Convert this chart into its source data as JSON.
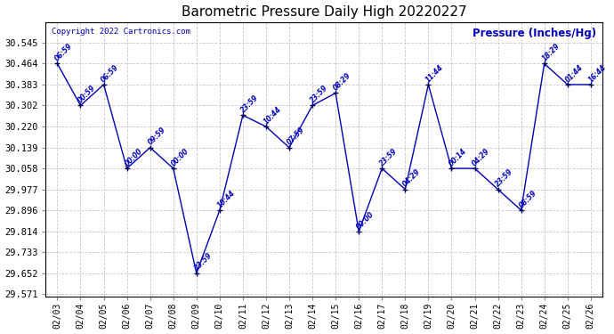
{
  "title": "Barometric Pressure Daily High 20220227",
  "ylabel_label": "Pressure (Inches/Hg)",
  "copyright": "Copyright 2022 Cartronics.com",
  "dates": [
    "02/03",
    "02/04",
    "02/05",
    "02/06",
    "02/07",
    "02/08",
    "02/09",
    "02/10",
    "02/11",
    "02/12",
    "02/13",
    "02/14",
    "02/15",
    "02/16",
    "02/17",
    "02/18",
    "02/19",
    "02/20",
    "02/21",
    "02/22",
    "02/23",
    "02/24",
    "02/25",
    "02/26"
  ],
  "values": [
    30.464,
    30.302,
    30.383,
    30.058,
    30.139,
    30.058,
    29.652,
    29.896,
    30.264,
    30.22,
    30.139,
    30.302,
    30.35,
    29.814,
    30.058,
    29.977,
    30.383,
    30.058,
    30.058,
    29.977,
    29.896,
    30.464,
    30.383,
    30.383
  ],
  "times": [
    "06:59",
    "00:59",
    "06:59",
    "00:00",
    "09:59",
    "00:00",
    "23:59",
    "10:44",
    "23:59",
    "10:44",
    "07:59",
    "23:59",
    "08:29",
    "00:00",
    "23:59",
    "04:29",
    "11:44",
    "00:14",
    "04:29",
    "23:59",
    "08:59",
    "18:29",
    "01:44",
    "16:44"
  ],
  "line_color": "#0000bb",
  "marker_color": "#000055",
  "grid_color": "#c8c8c8",
  "background_color": "#ffffff",
  "title_color": "#000000",
  "ylabel_color": "#0000bb",
  "copyright_color": "#0000bb",
  "time_label_color": "#0000bb",
  "ylim_min": 29.571,
  "ylim_max": 30.626,
  "yticks": [
    29.571,
    29.652,
    29.733,
    29.814,
    29.896,
    29.977,
    30.058,
    30.139,
    30.22,
    30.302,
    30.383,
    30.464,
    30.545
  ]
}
